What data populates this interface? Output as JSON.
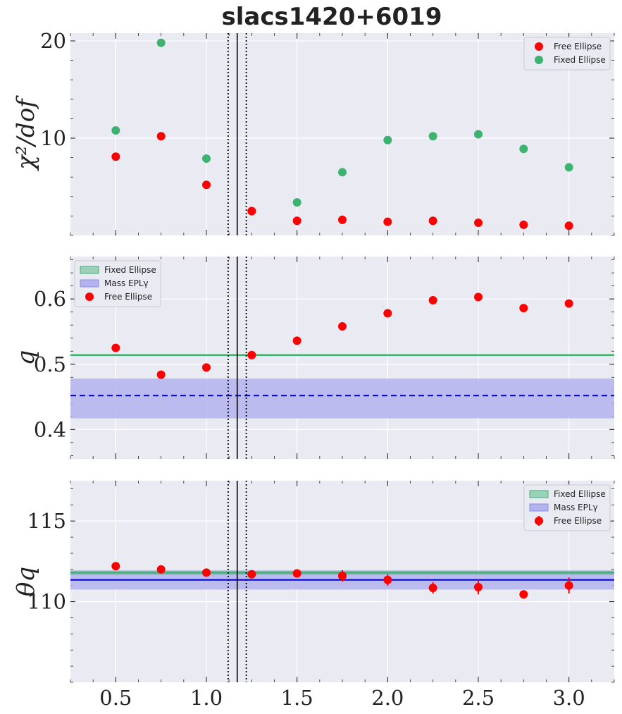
{
  "chart_data": {
    "type": "scatter",
    "title": "slacs1420+6019",
    "x": [
      0.5,
      0.75,
      1.0,
      1.25,
      1.5,
      1.75,
      2.0,
      2.25,
      2.5,
      2.75,
      3.0
    ],
    "xlim": [
      0.25,
      3.25
    ],
    "x_ticks": [
      "0.5",
      "1.0",
      "1.5",
      "2.0",
      "2.5",
      "3.0"
    ],
    "vlines_solid": [
      1.17
    ],
    "vlines_dotted": [
      1.12,
      1.22
    ],
    "grid": true,
    "colors": {
      "free": "#ff0000",
      "fixed": "#3cb371",
      "mass": "#0000cc",
      "mass_band": "#b3b3f0",
      "background": "#eaeaf2"
    },
    "panels": [
      {
        "ylabel": "χ²/dof",
        "ylim": [
          0,
          20.8
        ],
        "y_ticks": [
          "10",
          "20"
        ],
        "legend_position": "upper right",
        "legend": [
          "Free Ellipse",
          "Fixed Ellipse"
        ],
        "series": [
          {
            "name": "Free Ellipse",
            "values": [
              8.1,
              10.2,
              5.2,
              2.5,
              1.5,
              1.6,
              1.4,
              1.5,
              1.3,
              1.1,
              1.0
            ]
          },
          {
            "name": "Fixed Ellipse",
            "values": [
              10.8,
              19.8,
              7.9,
              2.5,
              3.4,
              6.5,
              9.8,
              10.2,
              10.4,
              8.9,
              7.0
            ]
          }
        ]
      },
      {
        "ylabel": "q",
        "ylim": [
          0.355,
          0.665
        ],
        "y_ticks": [
          "0.4",
          "0.5",
          "0.6"
        ],
        "legend_position": "upper left",
        "legend": [
          "Fixed Ellipse",
          "Mass EPLγ",
          "Free Ellipse"
        ],
        "fixed_line": 0.514,
        "mass_line": 0.452,
        "mass_band": [
          0.417,
          0.478
        ],
        "series": [
          {
            "name": "Free Ellipse",
            "values": [
              0.525,
              0.484,
              0.495,
              0.514,
              0.536,
              0.558,
              0.578,
              0.598,
              0.603,
              0.586,
              0.593
            ]
          }
        ]
      },
      {
        "ylabel": "θq",
        "ylim": [
          105,
          117.5
        ],
        "y_ticks": [
          "110",
          "115"
        ],
        "legend_position": "upper right",
        "legend": [
          "Fixed Ellipse",
          "Mass EPLγ",
          "Free Ellipse"
        ],
        "fixed_line": 111.8,
        "fixed_band": [
          111.65,
          111.95
        ],
        "mass_line": 111.35,
        "mass_band": [
          110.75,
          111.9
        ],
        "series": [
          {
            "name": "Free Ellipse",
            "values": [
              112.2,
              112.0,
              111.8,
              111.7,
              111.75,
              111.6,
              111.35,
              110.85,
              110.9,
              110.45,
              111.0
            ],
            "errors": [
              0.2,
              0.2,
              0.15,
              0.2,
              0.15,
              0.35,
              0.35,
              0.35,
              0.45,
              0.25,
              0.5
            ]
          }
        ]
      }
    ]
  }
}
